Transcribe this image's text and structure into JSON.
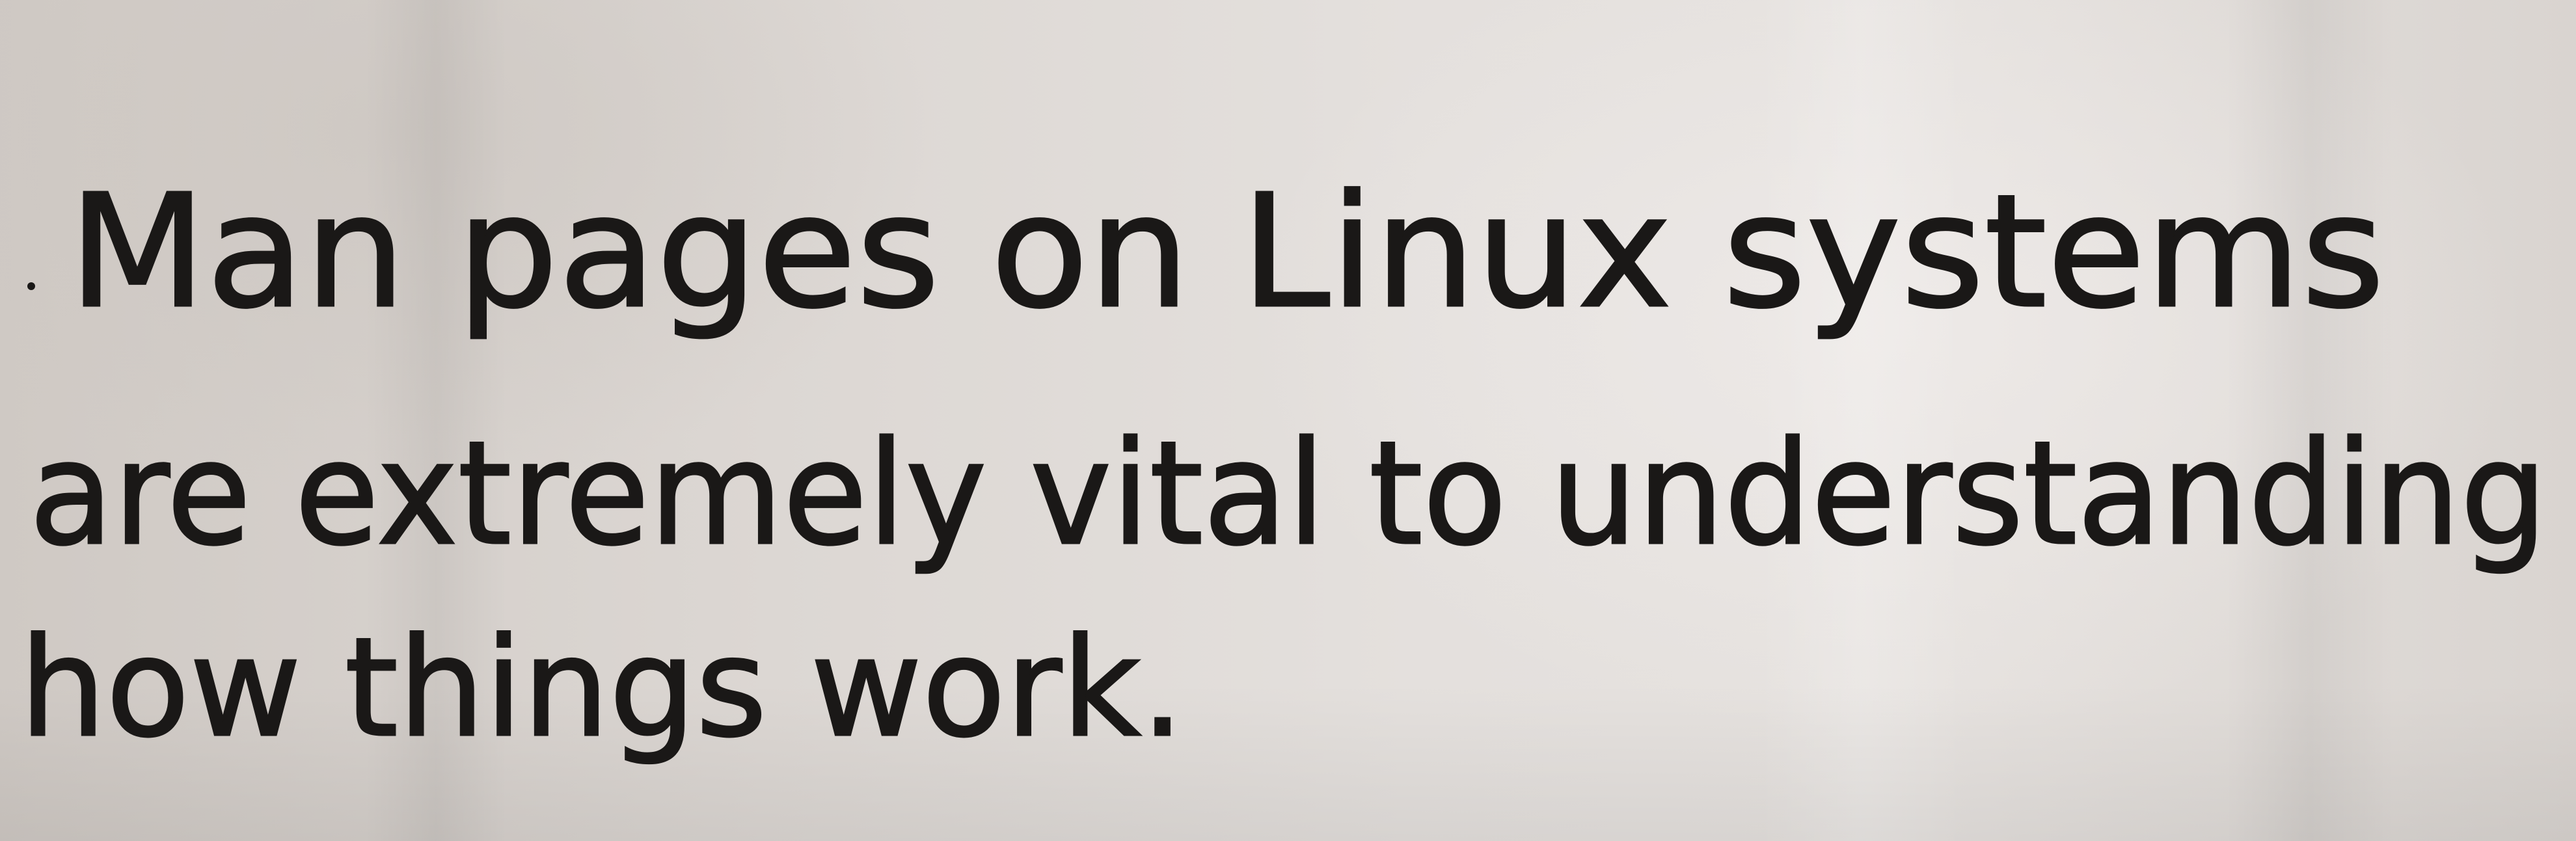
{
  "note": {
    "lines": [
      "Man pages on Linux systems",
      "are extremely vital to understanding",
      "how things work."
    ],
    "ink_color": "#1a1817",
    "paper_color": "#e2ddd9"
  }
}
